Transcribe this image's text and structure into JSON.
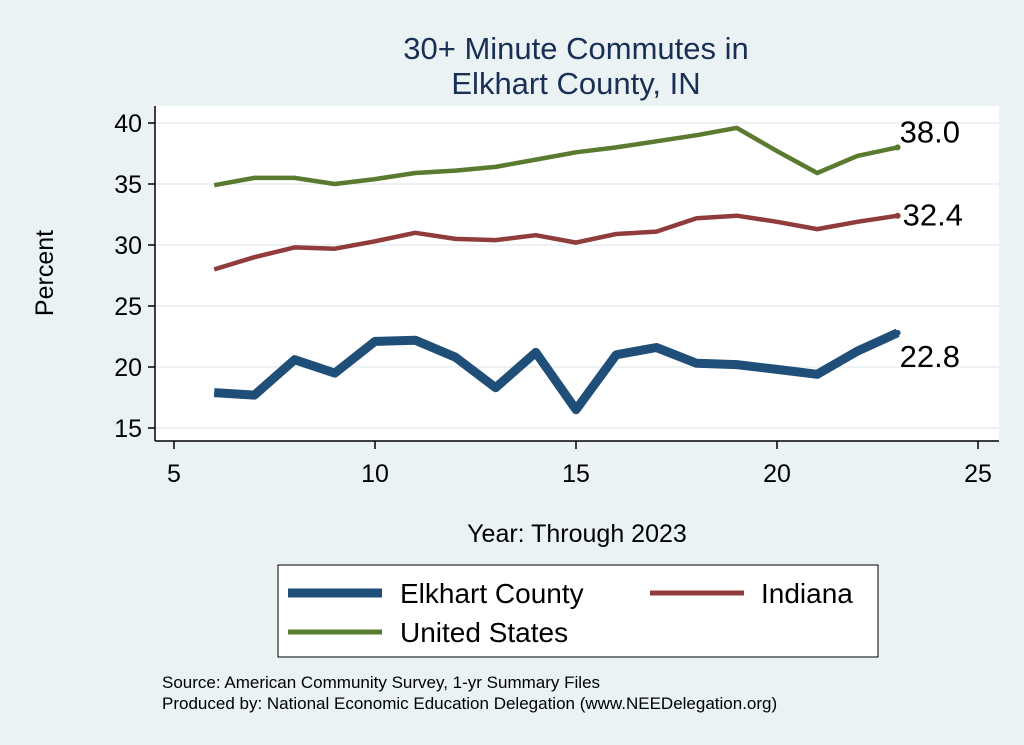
{
  "chart_data": {
    "type": "line",
    "title_lines": [
      "30+ Minute Commutes in",
      "Elkhart County, IN"
    ],
    "xlabel": "Year: Through 2023",
    "ylabel": "Percent",
    "xlim": [
      5,
      25
    ],
    "ylim": [
      15,
      40
    ],
    "x_ticks": [
      "5",
      "10",
      "15",
      "20",
      "25"
    ],
    "y_ticks": [
      "15",
      "20",
      "25",
      "30",
      "35",
      "40"
    ],
    "grid": true,
    "legend_position": "bottom",
    "series": [
      {
        "name": "Elkhart County",
        "color": "#1f4e79",
        "weight": "thick",
        "x": [
          6,
          7,
          8,
          9,
          10,
          11,
          12,
          13,
          14,
          15,
          16,
          17,
          18,
          19,
          20,
          21,
          22,
          23
        ],
        "y": [
          17.9,
          17.7,
          20.6,
          19.5,
          22.1,
          22.2,
          20.8,
          18.3,
          21.2,
          16.5,
          21.0,
          21.6,
          20.3,
          20.2,
          19.8,
          19.4,
          21.3,
          22.8
        ],
        "end_label": "22.8"
      },
      {
        "name": "Indiana",
        "color": "#903c3c",
        "weight": "medium",
        "x": [
          6,
          7,
          8,
          9,
          10,
          11,
          12,
          13,
          14,
          15,
          16,
          17,
          18,
          19,
          20,
          21,
          22,
          23
        ],
        "y": [
          28.0,
          29.0,
          29.8,
          29.7,
          30.3,
          31.0,
          30.5,
          30.4,
          30.8,
          30.2,
          30.9,
          31.1,
          32.2,
          32.4,
          31.9,
          31.3,
          31.9,
          32.4
        ],
        "end_label": "32.4"
      },
      {
        "name": "United States",
        "color": "#5a7a30",
        "weight": "medium",
        "x": [
          6,
          7,
          8,
          9,
          10,
          11,
          12,
          13,
          14,
          15,
          16,
          17,
          18,
          19,
          20,
          21,
          22,
          23
        ],
        "y": [
          34.9,
          35.5,
          35.5,
          35.0,
          35.4,
          35.9,
          36.1,
          36.4,
          37.0,
          37.6,
          38.0,
          38.5,
          39.0,
          39.6,
          37.7,
          35.9,
          37.3,
          38.0
        ],
        "end_label": "38.0"
      }
    ],
    "notes": [
      "Source: American Community Survey, 1-yr Summary Files",
      "Produced by: National Economic Education Delegation (www.NEEDelegation.org)"
    ]
  }
}
